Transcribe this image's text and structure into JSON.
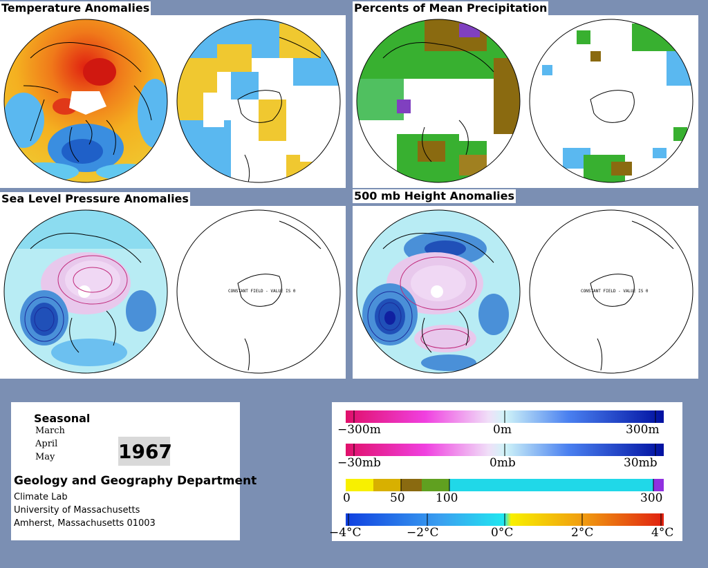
{
  "panels": {
    "temperature": {
      "title": "Temperature Anomalies"
    },
    "precipitation": {
      "title": "Percents of Mean Precipitation"
    },
    "slp": {
      "title": "Sea Level Pressure Anomalies",
      "constant_note": "CONSTANT FIELD - VALUE IS 0"
    },
    "height": {
      "title": "500 mb Height Anomalies",
      "constant_note": "CONSTANT FIELD - VALUE IS 0"
    }
  },
  "info": {
    "period": "Seasonal",
    "months": [
      "March",
      "April",
      "May"
    ],
    "year": "1967",
    "department": "Geology and Geography Department",
    "lines": [
      "Climate Lab",
      "University of Massachusetts",
      "Amherst, Massachusetts 01003"
    ]
  },
  "legend": {
    "height_scale": {
      "labels": [
        "−300m",
        "0m",
        "300m"
      ]
    },
    "pressure_scale": {
      "labels": [
        "−30mb",
        "0mb",
        "30mb"
      ]
    },
    "precip_scale": {
      "labels": [
        "0",
        "50",
        "100",
        "300"
      ]
    },
    "temp_scale": {
      "labels": [
        "−4°C",
        "−2°C",
        "0°C",
        "2°C",
        "4°C"
      ]
    }
  },
  "colors": {
    "background": "#7b8fb3",
    "anomaly_warm": "#e87a10",
    "anomaly_cool": "#3a8ee0",
    "positive_contour": "#c0287a",
    "negative_contour": "#1a2a9a",
    "precip_dry": "#8a6a10",
    "precip_wet": "#38b030"
  }
}
